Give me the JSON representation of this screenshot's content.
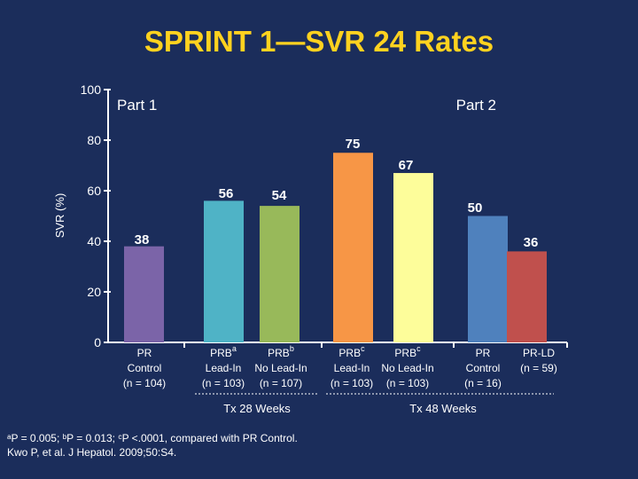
{
  "title": "SPRINT 1—SVR 24 Rates",
  "chart_data": {
    "type": "bar",
    "ylabel": "SVR (%)",
    "ylim": [
      0,
      100
    ],
    "yticks": [
      0,
      20,
      40,
      60,
      80,
      100
    ],
    "panels": [
      {
        "label": "Part 1"
      },
      {
        "label": "Part 2"
      }
    ],
    "bars": [
      {
        "value": 38,
        "color": "#7b64a8",
        "label": [
          "PR",
          "Control",
          "(n = 104)"
        ],
        "sup": ""
      },
      {
        "value": 56,
        "color": "#4fb3c6",
        "label": [
          "PRB",
          "Lead-In",
          "(n = 103)"
        ],
        "sup": "a"
      },
      {
        "value": 54,
        "color": "#98b95a",
        "label": [
          "PRB",
          "No Lead-In",
          "(n = 107)"
        ],
        "sup": "b"
      },
      {
        "value": 75,
        "color": "#f79646",
        "label": [
          "PRB",
          "Lead-In",
          "(n = 103)"
        ],
        "sup": "c"
      },
      {
        "value": 67,
        "color": "#fdfd9a",
        "label": [
          "PRB",
          "No Lead-In",
          "(n = 103)"
        ],
        "sup": "c"
      },
      {
        "value": 50,
        "color": "#4f81bd",
        "label": [
          "PR",
          "Control",
          "(n = 16)"
        ],
        "sup": ""
      },
      {
        "value": 36,
        "color": "#c0504d",
        "label": [
          "PR-LD",
          "(n = 59)"
        ],
        "sup": ""
      }
    ],
    "groups": [
      {
        "label": "Tx 28 Weeks"
      },
      {
        "label": "Tx 48 Weeks"
      }
    ]
  },
  "footnotes": {
    "line1": "ᵃP = 0.005; ᵇP = 0.013; ᶜP <.0001, compared with PR Control.",
    "line2": "Kwo P, et al. J Hepatol. 2009;50:S4."
  }
}
